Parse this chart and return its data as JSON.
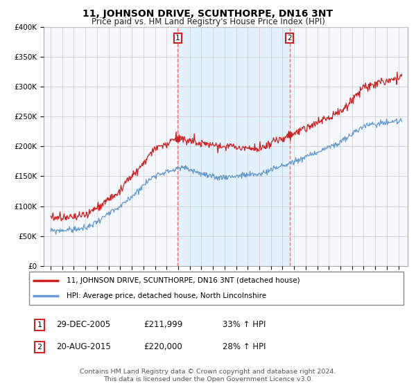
{
  "title": "11, JOHNSON DRIVE, SCUNTHORPE, DN16 3NT",
  "subtitle": "Price paid vs. HM Land Registry's House Price Index (HPI)",
  "ylim": [
    0,
    400000
  ],
  "yticks": [
    0,
    50000,
    100000,
    150000,
    200000,
    250000,
    300000,
    350000,
    400000
  ],
  "ytick_labels": [
    "£0",
    "£50K",
    "£100K",
    "£150K",
    "£200K",
    "£250K",
    "£300K",
    "£350K",
    "£400K"
  ],
  "line1_color": "#cc2222",
  "line2_color": "#6699cc",
  "vline_color": "#ee7777",
  "shade_color": "#ddeeff",
  "legend_line1": "11, JOHNSON DRIVE, SCUNTHORPE, DN16 3NT (detached house)",
  "legend_line2": "HPI: Average price, detached house, North Lincolnshire",
  "sale1_date": "29-DEC-2005",
  "sale1_price": "£211,999",
  "sale1_hpi": "33% ↑ HPI",
  "sale2_date": "20-AUG-2015",
  "sale2_price": "£220,000",
  "sale2_hpi": "28% ↑ HPI",
  "footnote1": "Contains HM Land Registry data © Crown copyright and database right 2024.",
  "footnote2": "This data is licensed under the Open Government Licence v3.0.",
  "background_color": "#ffffff",
  "plot_bg_color": "#f8f8f8",
  "grid_color": "#cccccc",
  "sale1_year": 2005.96,
  "sale2_year": 2015.62
}
